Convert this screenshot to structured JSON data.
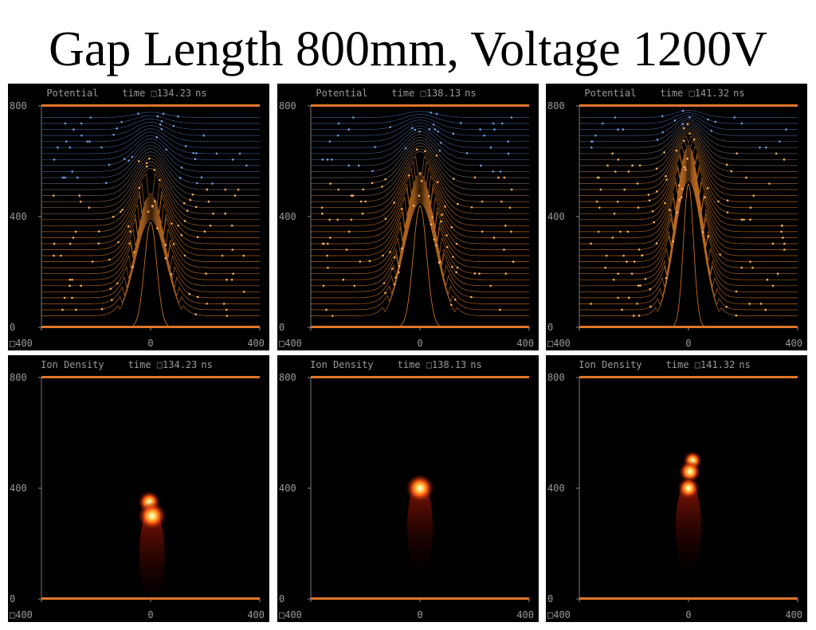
{
  "slide": {
    "title": "Gap Length 800mm, Voltage 1200V"
  },
  "colors": {
    "background": "#000000",
    "electrode": "#e0762a",
    "contour_low": "#c46f22",
    "contour_high": "#3f5f96",
    "particle_low": "#ffb25a",
    "particle_high": "#6a9fe8",
    "density_hot": "#ffffff"
  },
  "chart_data": [
    {
      "id": "p1",
      "type": "contour",
      "title": "Potential",
      "time_label": "time ",
      "time_value": "134.23",
      "time_unit": "ns",
      "xticks": [
        "□400",
        "0",
        "400"
      ],
      "yticks": [
        "800",
        "400",
        "0"
      ],
      "xlim": [
        -400,
        400
      ],
      "ylim": [
        0,
        800
      ],
      "streamer_tip": 380,
      "tip_width": 55
    },
    {
      "id": "p2",
      "type": "contour",
      "title": "Potential",
      "time_label": "time ",
      "time_value": "138.13",
      "time_unit": "ns",
      "xticks": [
        "□400",
        "0",
        "400"
      ],
      "yticks": [
        "800",
        "400",
        "0"
      ],
      "xlim": [
        -400,
        400
      ],
      "ylim": [
        0,
        800
      ],
      "streamer_tip": 440,
      "tip_width": 60
    },
    {
      "id": "p3",
      "type": "contour",
      "title": "Potential",
      "time_label": "time ",
      "time_value": "141.32",
      "time_unit": "ns",
      "xticks": [
        "□400",
        "0",
        "400"
      ],
      "yticks": [
        "800",
        "400",
        "0"
      ],
      "xlim": [
        -400,
        400
      ],
      "ylim": [
        0,
        800
      ],
      "streamer_tip": 520,
      "tip_width": 45
    },
    {
      "id": "d1",
      "type": "heatmap",
      "title": "Ion  Density",
      "time_label": "time ",
      "time_value": "134.23",
      "time_unit": "ns",
      "xticks": [
        "□400",
        "0",
        "400"
      ],
      "yticks": [
        "800",
        "400",
        "0"
      ],
      "xlim": [
        -400,
        400
      ],
      "ylim": [
        0,
        800
      ],
      "blobs": [
        {
          "x": -5,
          "y": 350,
          "r": 14
        },
        {
          "x": 5,
          "y": 300,
          "r": 18
        }
      ]
    },
    {
      "id": "d2",
      "type": "heatmap",
      "title": "Ion  Density",
      "time_label": "time ",
      "time_value": "138.13",
      "time_unit": "ns",
      "xticks": [
        "□400",
        "0",
        "400"
      ],
      "yticks": [
        "800",
        "400",
        "0"
      ],
      "xlim": [
        -400,
        400
      ],
      "ylim": [
        0,
        800
      ],
      "blobs": [
        {
          "x": 0,
          "y": 400,
          "r": 18
        }
      ]
    },
    {
      "id": "d3",
      "type": "heatmap",
      "title": "Ion  Density",
      "time_label": "time ",
      "time_value": "141.32",
      "time_unit": "ns",
      "xticks": [
        "□400",
        "0",
        "400"
      ],
      "yticks": [
        "800",
        "400",
        "0"
      ],
      "xlim": [
        -400,
        400
      ],
      "ylim": [
        0,
        800
      ],
      "blobs": [
        {
          "x": 15,
          "y": 500,
          "r": 12
        },
        {
          "x": 5,
          "y": 460,
          "r": 14
        },
        {
          "x": 0,
          "y": 400,
          "r": 14
        }
      ]
    }
  ]
}
